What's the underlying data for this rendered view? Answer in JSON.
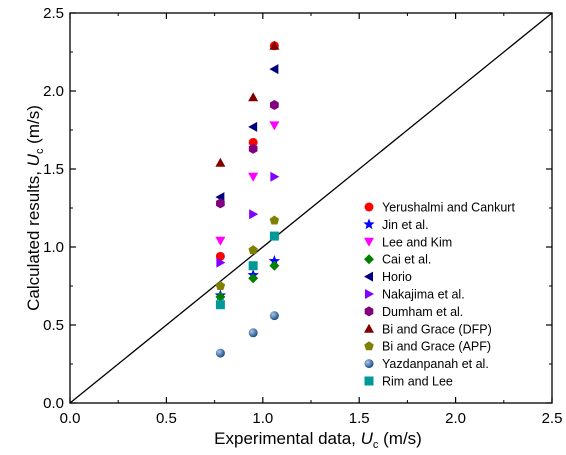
{
  "chart_data": {
    "type": "scatter",
    "title": "",
    "xlabel": "Experimental data, U_c (m/s)",
    "ylabel": "Calculated results, U_c (m/s)",
    "xlabel_parts": {
      "prefix": "Experimental data, ",
      "symbol": "U",
      "subscript": "c",
      "suffix": " (m/s)"
    },
    "ylabel_parts": {
      "prefix": "Calculated results, ",
      "symbol": "U",
      "subscript": "c",
      "suffix": " (m/s)"
    },
    "xlim": [
      0.0,
      2.5
    ],
    "ylim": [
      0.0,
      2.5
    ],
    "x_ticks": [
      "0.0",
      "0.5",
      "1.0",
      "1.5",
      "2.0",
      "2.5"
    ],
    "y_ticks": [
      "0.0",
      "0.5",
      "1.0",
      "1.5",
      "2.0",
      "2.5"
    ],
    "grid": false,
    "legend_position": "lower-right",
    "reference_line": {
      "from": [
        0,
        0
      ],
      "to": [
        2.5,
        2.5
      ],
      "color": "#000000"
    },
    "series": [
      {
        "name": "Yerushalmi and Cankurt",
        "marker": "circle",
        "color": "#ff0000",
        "x": [
          0.78,
          0.95,
          1.06
        ],
        "y": [
          0.94,
          1.67,
          2.29
        ]
      },
      {
        "name": "Jin et al.",
        "marker": "star",
        "color": "#0000ff",
        "x": [
          0.78,
          0.95,
          1.06
        ],
        "y": [
          0.69,
          0.82,
          0.91
        ]
      },
      {
        "name": "Lee and Kim",
        "marker": "triangle-down",
        "color": "#ff00ff",
        "x": [
          0.78,
          0.95,
          1.06
        ],
        "y": [
          1.04,
          1.45,
          1.78
        ]
      },
      {
        "name": "Cai et al.",
        "marker": "diamond",
        "color": "#008000",
        "x": [
          0.78,
          0.95,
          1.06
        ],
        "y": [
          0.68,
          0.8,
          0.88
        ]
      },
      {
        "name": "Horio",
        "marker": "triangle-left",
        "color": "#00007f",
        "x": [
          0.78,
          0.95,
          1.06
        ],
        "y": [
          1.32,
          1.77,
          2.14
        ]
      },
      {
        "name": "Nakajima et al.",
        "marker": "triangle-right",
        "color": "#8000ff",
        "x": [
          0.78,
          0.95,
          1.06
        ],
        "y": [
          0.9,
          1.21,
          1.45
        ]
      },
      {
        "name": "Dumham et al.",
        "marker": "hexagon",
        "color": "#800080",
        "x": [
          0.78,
          0.95,
          1.06
        ],
        "y": [
          1.28,
          1.63,
          1.91
        ]
      },
      {
        "name": "Bi and Grace (DFP)",
        "marker": "triangle-up",
        "color": "#800000",
        "x": [
          0.78,
          0.95,
          1.06
        ],
        "y": [
          1.54,
          1.96,
          2.29
        ]
      },
      {
        "name": "Bi and Grace (APF)",
        "marker": "pentagon",
        "color": "#808000",
        "x": [
          0.78,
          0.95,
          1.06
        ],
        "y": [
          0.75,
          0.98,
          1.17
        ]
      },
      {
        "name": "Yazdanpanah et al.",
        "marker": "sphere",
        "color": "#2e6aa8",
        "x": [
          0.78,
          0.95,
          1.06
        ],
        "y": [
          0.32,
          0.45,
          0.56
        ]
      },
      {
        "name": "Rim and Lee",
        "marker": "square",
        "color": "#009999",
        "x": [
          0.78,
          0.95,
          1.06
        ],
        "y": [
          0.63,
          0.88,
          1.07
        ]
      }
    ]
  }
}
